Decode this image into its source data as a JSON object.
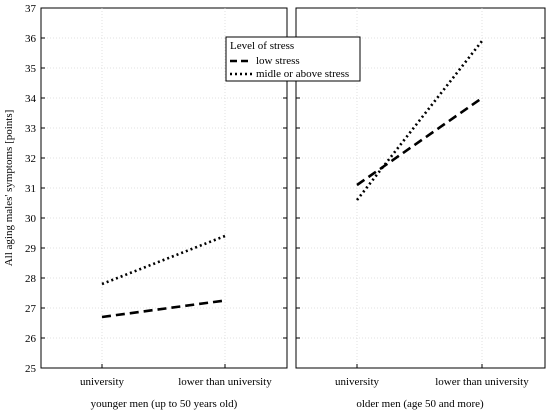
{
  "chart_data": {
    "type": "line",
    "ylabel": "All aging males' symptoms [points]",
    "ylim": [
      25,
      37
    ],
    "yticks": [
      25,
      26,
      27,
      28,
      29,
      30,
      31,
      32,
      33,
      34,
      35,
      36,
      37
    ],
    "grid": true,
    "legend": {
      "title": "Level of stress",
      "placement": "top-center",
      "entries": [
        {
          "label": "low stress",
          "style": "dashed"
        },
        {
          "label": "midle or above stress",
          "style": "dotted"
        }
      ]
    },
    "categories": [
      "university",
      "lower than university"
    ],
    "panels": [
      {
        "title": "younger men (up to 50 years old)",
        "series": [
          {
            "name": "low stress",
            "style": "dashed",
            "values": [
              26.7,
              27.25
            ]
          },
          {
            "name": "midle or above stress",
            "style": "dotted",
            "values": [
              27.8,
              29.4
            ]
          }
        ]
      },
      {
        "title": "older men (age 50 and more)",
        "series": [
          {
            "name": "low stress",
            "style": "dashed",
            "values": [
              31.1,
              34.0
            ]
          },
          {
            "name": "midle or above stress",
            "style": "dotted",
            "values": [
              30.6,
              35.9
            ]
          }
        ]
      }
    ]
  }
}
